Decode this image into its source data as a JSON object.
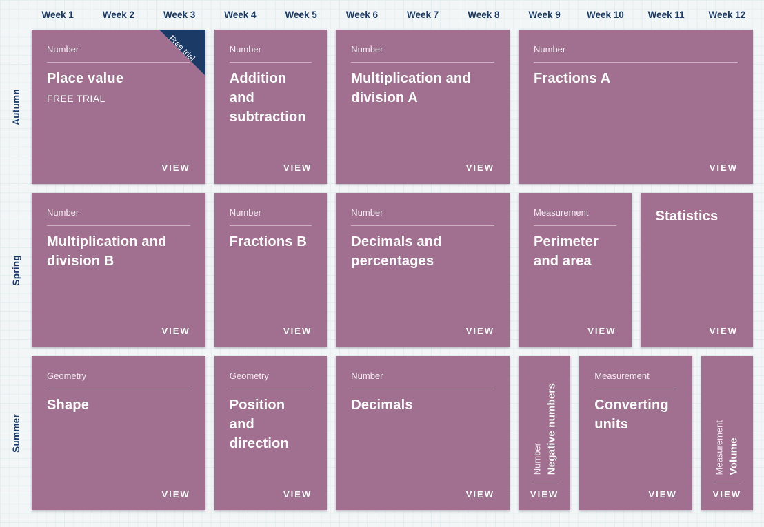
{
  "header": {
    "weeks": [
      "Week 1",
      "Week 2",
      "Week 3",
      "Week 4",
      "Week 5",
      "Week 6",
      "Week 7",
      "Week 8",
      "Week 9",
      "Week 10",
      "Week 11",
      "Week 12"
    ]
  },
  "labels": {
    "view": "VIEW"
  },
  "rows": [
    {
      "season": "Autumn",
      "cards": [
        {
          "category": "Number",
          "title": "Place value",
          "subtitle": "FREE TRIAL",
          "weeks": 3,
          "ribbon": "Free trial"
        },
        {
          "category": "Number",
          "title": "Addition and subtraction",
          "weeks": 2
        },
        {
          "category": "Number",
          "title": "Multiplication and division A",
          "weeks": 3
        },
        {
          "category": "Number",
          "title": "Fractions A",
          "weeks": 4
        }
      ]
    },
    {
      "season": "Spring",
      "cards": [
        {
          "category": "Number",
          "title": "Multiplication and division B",
          "weeks": 3
        },
        {
          "category": "Number",
          "title": "Fractions B",
          "weeks": 2
        },
        {
          "category": "Number",
          "title": "Decimals and percentages",
          "weeks": 3
        },
        {
          "category": "Measurement",
          "title": "Perimeter and area",
          "weeks": 2
        },
        {
          "category": "",
          "title": "Statistics",
          "weeks": 2
        }
      ]
    },
    {
      "season": "Summer",
      "cards": [
        {
          "category": "Geometry",
          "title": "Shape",
          "weeks": 3
        },
        {
          "category": "Geometry",
          "title": "Position and direction",
          "weeks": 2
        },
        {
          "category": "Number",
          "title": "Decimals",
          "weeks": 3
        },
        {
          "category": "Number",
          "title": "Negative numbers",
          "weeks": 1,
          "vertical": true
        },
        {
          "category": "Measurement",
          "title": "Converting units",
          "weeks": 2
        },
        {
          "category": "Measurement",
          "title": "Volume",
          "weeks": 1,
          "vertical": true
        }
      ]
    }
  ],
  "colors": {
    "card": "#a17090",
    "navy": "#1b3a66",
    "background": "#f3f6f7",
    "grid_line": "#e3eef0"
  }
}
